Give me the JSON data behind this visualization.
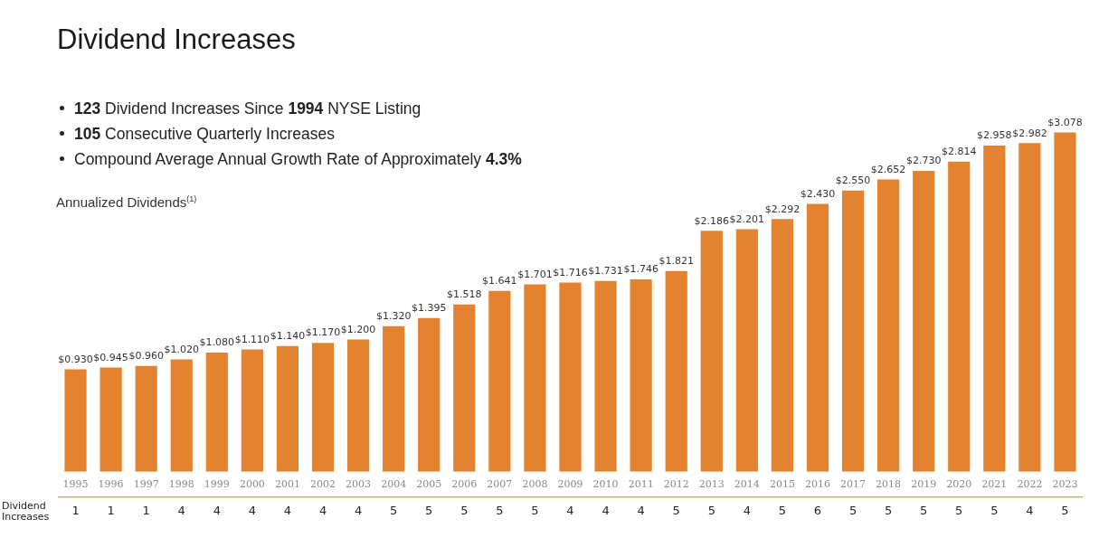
{
  "chart_data": {
    "type": "bar",
    "title": "Dividend Increases",
    "subtitle": [
      "123 Dividend Increases Since 1994 NYSE Listing",
      "105 Consecutive Quarterly Increases",
      "Compound Average Annual Growth Rate of Approximately 4.3%"
    ],
    "ylabel": "Annualized Dividends$^{(1)}$",
    "categories": [
      "1995",
      "1996",
      "1997",
      "1998",
      "1999",
      "2000",
      "2001",
      "2002",
      "2003",
      "2004",
      "2005",
      "2006",
      "2007",
      "2008",
      "2009",
      "2010",
      "2011",
      "2012",
      "2013",
      "2014",
      "2015",
      "2016",
      "2017",
      "2018",
      "2019",
      "2020",
      "2021",
      "2022",
      "2023"
    ],
    "values": [
      0.93,
      0.945,
      0.96,
      1.02,
      1.08,
      1.11,
      1.14,
      1.17,
      1.2,
      1.32,
      1.395,
      1.518,
      1.641,
      1.701,
      1.716,
      1.731,
      1.746,
      1.821,
      2.186,
      2.201,
      2.292,
      2.43,
      2.55,
      2.652,
      2.73,
      2.814,
      2.958,
      2.982,
      3.078
    ],
    "value_labels": [
      "$0.930",
      "$0.945",
      "$0.960",
      "$1.020",
      "$1.080",
      "$1.110",
      "$1.140",
      "$1.170",
      "$1.200",
      "$1.320",
      "$1.395",
      "$1.518",
      "$1.641",
      "$1.701",
      "$1.716",
      "$1.731",
      "$1.746",
      "$1.821",
      "$2.186",
      "$2.201",
      "$2.292",
      "$2.430",
      "$2.550",
      "$2.652",
      "$2.730",
      "$2.814",
      "$2.958",
      "$2.982",
      "$3.078"
    ],
    "color": "#e4832f",
    "annotations": [
      "Dividend Increases",
      "1",
      "1",
      "1",
      "4",
      "4",
      "4",
      "4",
      "4",
      "4",
      "5",
      "5",
      "5",
      "5",
      "5",
      "4",
      "4",
      "4",
      "5",
      "5",
      "4",
      "5",
      "6",
      "5",
      "5",
      "5",
      "5",
      "5",
      "4",
      "5"
    ],
    "grid": false,
    "legend": false
  }
}
